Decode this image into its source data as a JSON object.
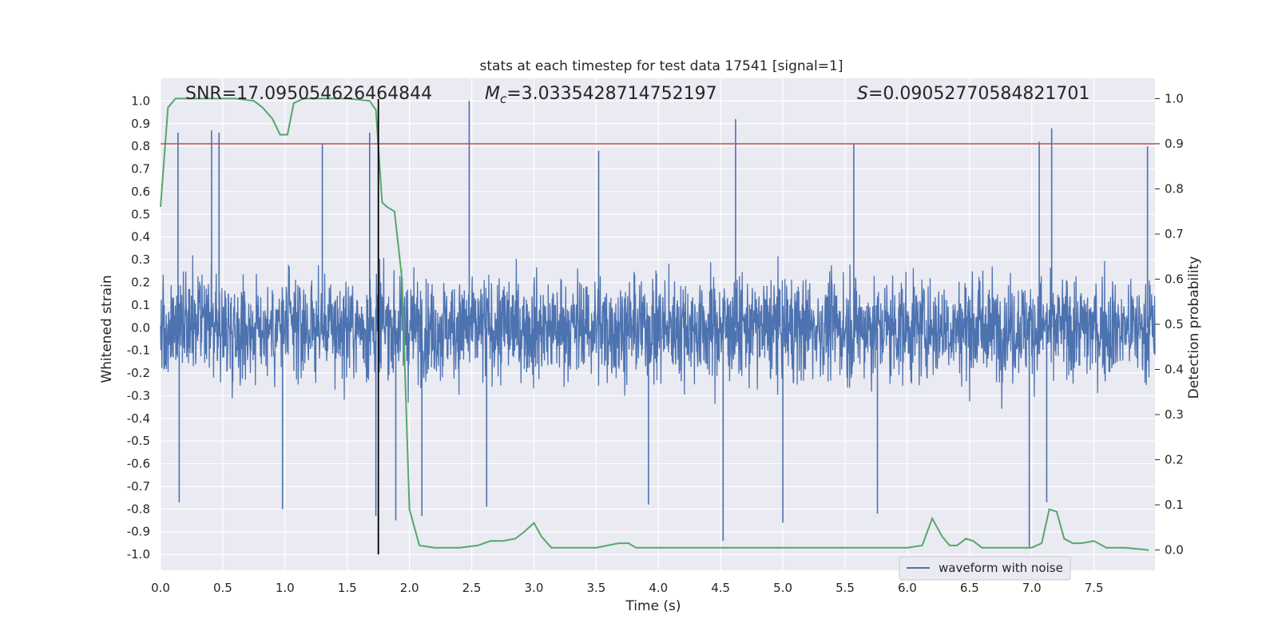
{
  "chart_data": {
    "type": "line",
    "title": "stats at each timestep for test data 17541 [signal=1]",
    "xlabel": "Time (s)",
    "ylabel": "Whitened strain",
    "y2label": "Detection probability",
    "xlim": [
      0.0,
      7.99
    ],
    "ylim": [
      -1.07,
      1.1
    ],
    "y2lim": [
      -0.045,
      1.045
    ],
    "xticks": [
      0.0,
      0.5,
      1.0,
      1.5,
      2.0,
      2.5,
      3.0,
      3.5,
      4.0,
      4.5,
      5.0,
      5.5,
      6.0,
      6.5,
      7.0,
      7.5
    ],
    "yticks": [
      -1.0,
      -0.9,
      -0.8,
      -0.7,
      -0.6,
      -0.5,
      -0.4,
      -0.3,
      -0.2,
      -0.1,
      0.0,
      0.1,
      0.2,
      0.3,
      0.4,
      0.5,
      0.6,
      0.7,
      0.8,
      0.9,
      1.0
    ],
    "y2ticks": [
      0.0,
      0.1,
      0.2,
      0.3,
      0.4,
      0.5,
      0.6,
      0.7,
      0.8,
      0.9,
      1.0
    ],
    "grid": true,
    "annotations": {
      "snr": "SNR=17.095054626464844",
      "mc": "=3.0335428714752197",
      "s": "=0.09052770584821701"
    },
    "threshold": {
      "axis": "y2",
      "value": 0.9,
      "color": "#c44e52"
    },
    "vline": {
      "x": 1.75,
      "color": "#000000"
    },
    "legend": {
      "label": "waveform with noise",
      "location": "lower-right"
    },
    "series": [
      {
        "name": "waveform with noise",
        "axis": "y",
        "color": "#4c72b0",
        "envelope_note": "dense noisy signal; band roughly within ±0.4, peaks listed",
        "peaks_pos": [
          [
            0.14,
            0.86
          ],
          [
            0.41,
            0.87
          ],
          [
            0.47,
            0.86
          ],
          [
            1.3,
            0.81
          ],
          [
            1.68,
            0.86
          ],
          [
            2.48,
            1.0
          ],
          [
            3.52,
            0.78
          ],
          [
            4.62,
            0.92
          ],
          [
            5.57,
            0.81
          ],
          [
            7.06,
            0.82
          ],
          [
            7.16,
            0.88
          ],
          [
            7.93,
            0.8
          ]
        ],
        "peaks_neg": [
          [
            0.15,
            -0.77
          ],
          [
            0.98,
            -0.8
          ],
          [
            1.73,
            -0.83
          ],
          [
            1.89,
            -0.85
          ],
          [
            2.1,
            -0.83
          ],
          [
            2.62,
            -0.79
          ],
          [
            3.92,
            -0.78
          ],
          [
            4.52,
            -0.94
          ],
          [
            5.0,
            -0.86
          ],
          [
            5.76,
            -0.82
          ],
          [
            6.98,
            -0.97
          ],
          [
            7.12,
            -0.77
          ]
        ]
      },
      {
        "name": "detection probability",
        "axis": "y2",
        "color": "#55a868",
        "x": [
          0.0,
          0.06,
          0.12,
          0.2,
          0.4,
          0.6,
          0.75,
          0.82,
          0.9,
          0.96,
          1.02,
          1.07,
          1.15,
          1.3,
          1.5,
          1.68,
          1.73,
          1.78,
          1.82,
          1.88,
          1.94,
          2.0,
          2.08,
          2.2,
          2.4,
          2.55,
          2.65,
          2.75,
          2.85,
          2.92,
          3.0,
          3.06,
          3.14,
          3.25,
          3.5,
          3.68,
          3.76,
          3.82,
          3.9,
          4.05,
          4.2,
          4.5,
          5.0,
          5.05,
          5.3,
          5.6,
          6.0,
          6.12,
          6.2,
          6.28,
          6.34,
          6.4,
          6.47,
          6.53,
          6.6,
          6.7,
          6.9,
          7.0,
          7.08,
          7.14,
          7.2,
          7.26,
          7.33,
          7.4,
          7.5,
          7.6,
          7.75,
          7.94
        ],
        "values": [
          0.76,
          0.98,
          1.0,
          1.0,
          1.0,
          1.0,
          0.995,
          0.98,
          0.955,
          0.92,
          0.92,
          0.99,
          1.0,
          1.0,
          1.0,
          0.995,
          0.975,
          0.77,
          0.76,
          0.75,
          0.6,
          0.09,
          0.01,
          0.005,
          0.005,
          0.01,
          0.02,
          0.02,
          0.025,
          0.04,
          0.06,
          0.03,
          0.005,
          0.005,
          0.005,
          0.015,
          0.015,
          0.005,
          0.005,
          0.005,
          0.005,
          0.005,
          0.005,
          0.005,
          0.005,
          0.005,
          0.005,
          0.01,
          0.07,
          0.03,
          0.01,
          0.01,
          0.025,
          0.02,
          0.005,
          0.005,
          0.005,
          0.005,
          0.015,
          0.09,
          0.085,
          0.025,
          0.015,
          0.015,
          0.02,
          0.005,
          0.005,
          0.0
        ]
      }
    ]
  }
}
